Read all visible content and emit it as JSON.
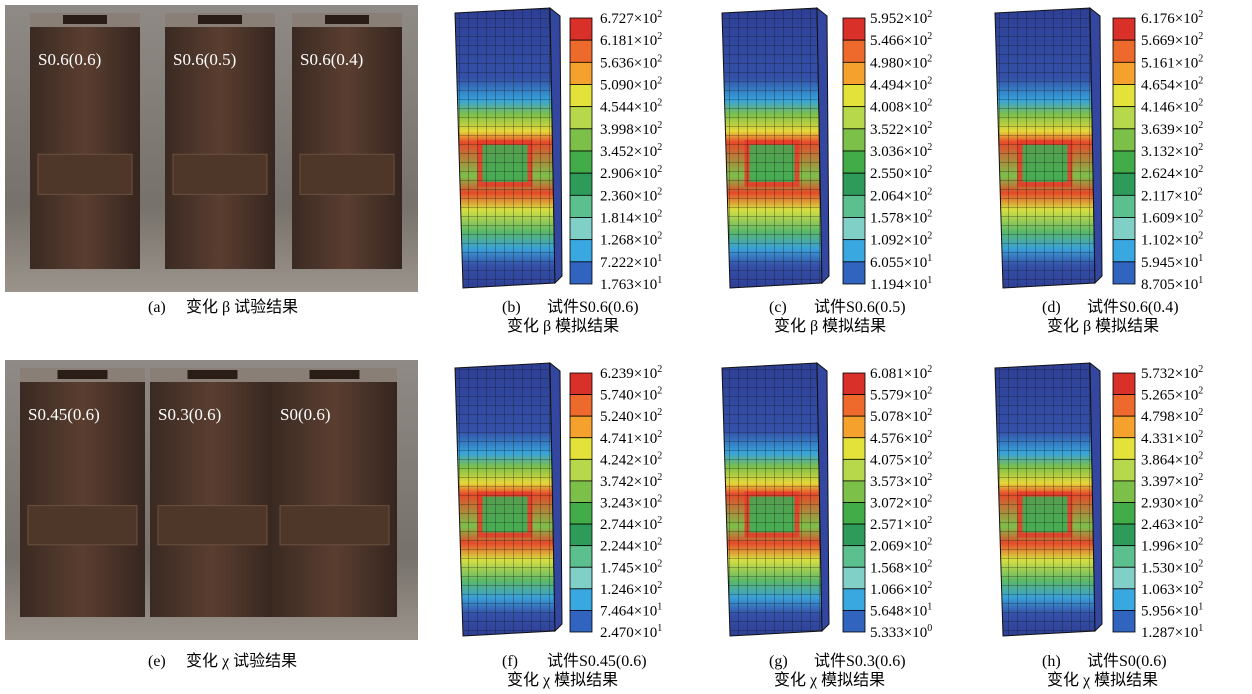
{
  "rows": [
    {
      "photo": {
        "specimens": [
          "S0.6(0.6)",
          "S0.6(0.5)",
          "S0.6(0.4)"
        ],
        "caption": {
          "id": "(a)",
          "text": "变化 β 试验结果"
        }
      },
      "simulations": [
        {
          "legend": [
            {
              "base": "6.727×10",
              "exp": "2"
            },
            {
              "base": "6.181×10",
              "exp": "2"
            },
            {
              "base": "5.636×10",
              "exp": "2"
            },
            {
              "base": "5.090×10",
              "exp": "2"
            },
            {
              "base": "4.544×10",
              "exp": "2"
            },
            {
              "base": "3.998×10",
              "exp": "2"
            },
            {
              "base": "3.452×10",
              "exp": "2"
            },
            {
              "base": "2.906×10",
              "exp": "2"
            },
            {
              "base": "2.360×10",
              "exp": "2"
            },
            {
              "base": "1.814×10",
              "exp": "2"
            },
            {
              "base": "1.268×10",
              "exp": "2"
            },
            {
              "base": "7.222×10",
              "exp": "1"
            },
            {
              "base": "1.763×10",
              "exp": "1"
            }
          ],
          "caption": {
            "id": "(b)",
            "name": "试件S0.6(0.6)",
            "text": "变化 β 模拟结果"
          }
        },
        {
          "legend": [
            {
              "base": "5.952×10",
              "exp": "2"
            },
            {
              "base": "5.466×10",
              "exp": "2"
            },
            {
              "base": "4.980×10",
              "exp": "2"
            },
            {
              "base": "4.494×10",
              "exp": "2"
            },
            {
              "base": "4.008×10",
              "exp": "2"
            },
            {
              "base": "3.522×10",
              "exp": "2"
            },
            {
              "base": "3.036×10",
              "exp": "2"
            },
            {
              "base": "2.550×10",
              "exp": "2"
            },
            {
              "base": "2.064×10",
              "exp": "2"
            },
            {
              "base": "1.578×10",
              "exp": "2"
            },
            {
              "base": "1.092×10",
              "exp": "2"
            },
            {
              "base": "6.055×10",
              "exp": "1"
            },
            {
              "base": "1.194×10",
              "exp": "1"
            }
          ],
          "caption": {
            "id": "(c)",
            "name": "试件S0.6(0.5)",
            "text": "变化 β 模拟结果"
          }
        },
        {
          "legend": [
            {
              "base": "6.176×10",
              "exp": "2"
            },
            {
              "base": "5.669×10",
              "exp": "2"
            },
            {
              "base": "5.161×10",
              "exp": "2"
            },
            {
              "base": "4.654×10",
              "exp": "2"
            },
            {
              "base": "4.146×10",
              "exp": "2"
            },
            {
              "base": "3.639×10",
              "exp": "2"
            },
            {
              "base": "3.132×10",
              "exp": "2"
            },
            {
              "base": "2.624×10",
              "exp": "2"
            },
            {
              "base": "2.117×10",
              "exp": "2"
            },
            {
              "base": "1.609×10",
              "exp": "2"
            },
            {
              "base": "1.102×10",
              "exp": "2"
            },
            {
              "base": "5.945×10",
              "exp": "1"
            },
            {
              "base": "8.705×10",
              "exp": "1"
            }
          ],
          "caption": {
            "id": "(d)",
            "name": "试件S0.6(0.4)",
            "text": "变化 β 模拟结果"
          }
        }
      ]
    },
    {
      "photo": {
        "specimens": [
          "S0.45(0.6)",
          "S0.3(0.6)",
          "S0(0.6)"
        ],
        "caption": {
          "id": "(e)",
          "text": "变化 χ 试验结果"
        }
      },
      "simulations": [
        {
          "legend": [
            {
              "base": "6.239×10",
              "exp": "2"
            },
            {
              "base": "5.740×10",
              "exp": "2"
            },
            {
              "base": "5.240×10",
              "exp": "2"
            },
            {
              "base": "4.741×10",
              "exp": "2"
            },
            {
              "base": "4.242×10",
              "exp": "2"
            },
            {
              "base": "3.742×10",
              "exp": "2"
            },
            {
              "base": "3.243×10",
              "exp": "2"
            },
            {
              "base": "2.744×10",
              "exp": "2"
            },
            {
              "base": "2.244×10",
              "exp": "2"
            },
            {
              "base": "1.745×10",
              "exp": "2"
            },
            {
              "base": "1.246×10",
              "exp": "2"
            },
            {
              "base": "7.464×10",
              "exp": "1"
            },
            {
              "base": "2.470×10",
              "exp": "1"
            }
          ],
          "caption": {
            "id": "(f)",
            "name": "试件S0.45(0.6)",
            "text": "变化 χ 模拟结果"
          }
        },
        {
          "legend": [
            {
              "base": "6.081×10",
              "exp": "2"
            },
            {
              "base": "5.579×10",
              "exp": "2"
            },
            {
              "base": "5.078×10",
              "exp": "2"
            },
            {
              "base": "4.576×10",
              "exp": "2"
            },
            {
              "base": "4.075×10",
              "exp": "2"
            },
            {
              "base": "3.573×10",
              "exp": "2"
            },
            {
              "base": "3.072×10",
              "exp": "2"
            },
            {
              "base": "2.571×10",
              "exp": "2"
            },
            {
              "base": "2.069×10",
              "exp": "2"
            },
            {
              "base": "1.568×10",
              "exp": "2"
            },
            {
              "base": "1.066×10",
              "exp": "2"
            },
            {
              "base": "5.648×10",
              "exp": "1"
            },
            {
              "base": "5.333×10",
              "exp": "0"
            }
          ],
          "caption": {
            "id": "(g)",
            "name": "试件S0.3(0.6)",
            "text": "变化 χ 模拟结果"
          }
        },
        {
          "legend": [
            {
              "base": "5.732×10",
              "exp": "2"
            },
            {
              "base": "5.265×10",
              "exp": "2"
            },
            {
              "base": "4.798×10",
              "exp": "2"
            },
            {
              "base": "4.331×10",
              "exp": "2"
            },
            {
              "base": "3.864×10",
              "exp": "2"
            },
            {
              "base": "3.397×10",
              "exp": "2"
            },
            {
              "base": "2.930×10",
              "exp": "2"
            },
            {
              "base": "2.463×10",
              "exp": "2"
            },
            {
              "base": "1.996×10",
              "exp": "2"
            },
            {
              "base": "1.530×10",
              "exp": "2"
            },
            {
              "base": "1.063×10",
              "exp": "2"
            },
            {
              "base": "5.956×10",
              "exp": "1"
            },
            {
              "base": "1.287×10",
              "exp": "1"
            }
          ],
          "caption": {
            "id": "(h)",
            "name": "试件S0(0.6)",
            "text": "变化 χ 模拟结果"
          }
        }
      ]
    }
  ]
}
